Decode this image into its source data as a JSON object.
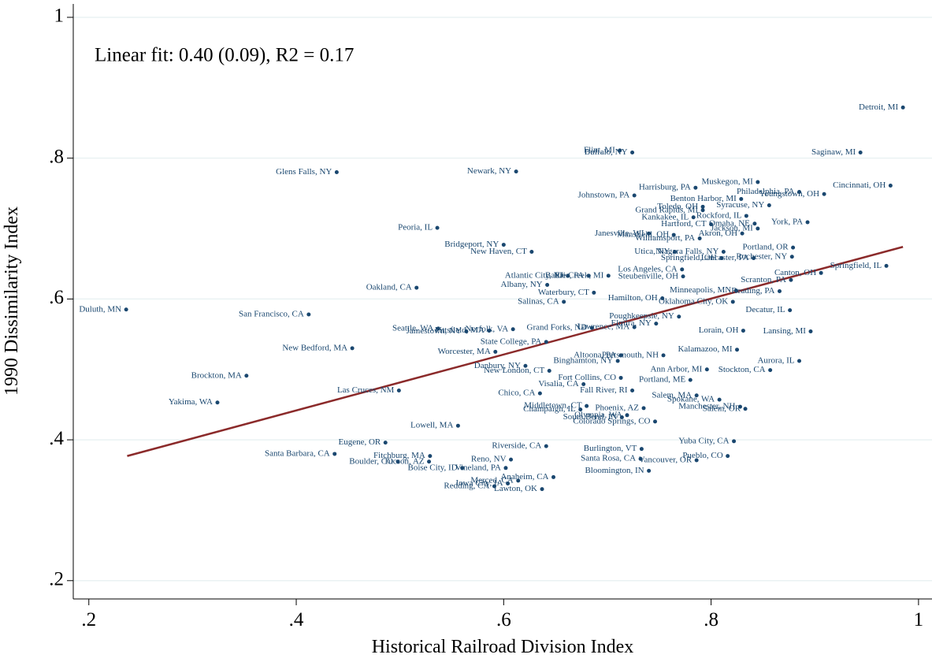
{
  "chart_data": {
    "type": "scatter",
    "annotation": "Linear fit: 0.40 (0.09), R2 = 0.17",
    "x_label": "Historical Railroad Division Index",
    "y_label": "1990 Dissimilarity Index",
    "xlim": [
      0.185,
      1.013
    ],
    "ylim": [
      0.174,
      1.019
    ],
    "xticks": [
      {
        "value": 0.2,
        "label": ".2"
      },
      {
        "value": 0.4,
        "label": ".4"
      },
      {
        "value": 0.6,
        "label": ".6"
      },
      {
        "value": 0.8,
        "label": ".8"
      },
      1
    ],
    "yticks": [
      {
        "value": 0.2,
        "label": ".2"
      },
      {
        "value": 0.4,
        "label": ".4"
      },
      {
        "value": 0.6,
        "label": ".6"
      },
      {
        "value": 0.8,
        "label": ".8"
      },
      1
    ],
    "grid": true,
    "series": [
      {
        "color": "#1a476f",
        "point_labels": [
          "Detroit, MI",
          "Saginaw, MI",
          "Cincinnati, OH",
          "Flint, MI",
          "Buffalo, NY",
          "Glens Falls, NY",
          "Newark, NY",
          "Muskegon, MI",
          "Harrisburg, PA",
          "Johnstown, PA",
          "Philadelphia, PA",
          "Youngstown, OH",
          "Benton Harbor, MI",
          "Toledo, OH",
          "Syracuse, NY",
          "Grand Rapids, MI",
          "Kankakee, IL",
          "Rockford, IL",
          "York, PA",
          "Hartford, CT",
          "Omaha, NE",
          "Jackson, MI",
          "Akron, OH",
          "Peoria, IL",
          "Janesville, WI",
          "Mansfield, OH",
          "Williamsport, PA",
          "Bridgeport, NY",
          "New Haven, CT",
          "Portland, OR",
          "Utica, NY",
          "Niagara Falls, NY",
          "Rochester, NY",
          "Springfield, OH",
          "Lancaster, PA",
          "Springfield, IL",
          "Canton, OH",
          "Los Angeles, CA",
          "Battle Creek, MI",
          "Erie, PA",
          "Atlantic City, NJ",
          "Steubenville, OH",
          "Albany, NY",
          "Scranton, PA",
          "Oakland, CA",
          "Waterbury, CT",
          "Reading, PA",
          "Minneapolis, MN",
          "Salinas, CA",
          "Hamilton, OH",
          "Oklahoma City, OK",
          "Duluth, MN",
          "Decatur, IL",
          "San Francisco, CA",
          "Poughkeepsie, NY",
          "Elmira, NY",
          "Seattle, WA",
          "Jamestown, NY",
          "Pittsfield, MA",
          "Norfolk, VA",
          "Grand Forks, ND",
          "Lawrence, MA",
          "Lorain, OH",
          "Lansing, MI",
          "State College, PA",
          "New Bedford, MA",
          "Worcester, MA",
          "Kalamazoo, MI",
          "Altoona, PA",
          "Portsmouth, NH",
          "Binghamton, NY",
          "Aurora, IL",
          "Danbury, NY",
          "New London, CT",
          "Ann Arbor, MI",
          "Stockton, CA",
          "Brockton, MA",
          "Fort Collins, CO",
          "Portland, ME",
          "Visalia, CA",
          "Fall River, RI",
          "Las Cruces, NM",
          "Chico, CA",
          "Salem, MA",
          "Spokane, WA",
          "Yakima, WA",
          "Middletown, CT",
          "Phoenix, AZ",
          "Champaign, IL",
          "Manchester, NH",
          "Salem, OR",
          "Olympia, WA",
          "South Bend, IN",
          "Colorado Springs, CO",
          "Lowell, MA",
          "Eugene, OR",
          "Riverside, CA",
          "Yuba City, CA",
          "Burlington, VT",
          "Santa Barbara, CA",
          "Pueblo, CO",
          "Fitchburg, MA",
          "Santa Rosa, CA",
          "Reno, NV",
          "Boulder, CO",
          "Tucson, AZ",
          "Vancouver, OR",
          "Boise City, ID",
          "Vineland, PA",
          "Bloomington, IN",
          "Anaheim, CA",
          "Merced, CA",
          "Iowa City, IA",
          "Redding, CA",
          "Lawton, OK"
        ],
        "x": [
          0.985,
          0.944,
          0.973,
          0.712,
          0.724,
          0.439,
          0.612,
          0.845,
          0.785,
          0.726,
          0.885,
          0.909,
          0.829,
          0.792,
          0.856,
          0.792,
          0.783,
          0.834,
          0.893,
          0.8,
          0.842,
          0.845,
          0.83,
          0.536,
          0.74,
          0.764,
          0.789,
          0.6,
          0.627,
          0.879,
          0.765,
          0.812,
          0.878,
          0.81,
          0.841,
          0.969,
          0.906,
          0.772,
          0.701,
          0.682,
          0.662,
          0.773,
          0.642,
          0.877,
          0.516,
          0.687,
          0.866,
          0.824,
          0.658,
          0.753,
          0.821,
          0.236,
          0.876,
          0.412,
          0.769,
          0.747,
          0.537,
          0.564,
          0.586,
          0.609,
          0.685,
          0.726,
          0.831,
          0.896,
          0.641,
          0.454,
          0.592,
          0.825,
          0.713,
          0.754,
          0.71,
          0.885,
          0.621,
          0.644,
          0.796,
          0.857,
          0.352,
          0.713,
          0.78,
          0.677,
          0.724,
          0.499,
          0.635,
          0.786,
          0.808,
          0.324,
          0.68,
          0.735,
          0.674,
          0.828,
          0.833,
          0.719,
          0.714,
          0.746,
          0.556,
          0.486,
          0.641,
          0.822,
          0.733,
          0.437,
          0.816,
          0.529,
          0.732,
          0.607,
          0.498,
          0.528,
          0.786,
          0.56,
          0.602,
          0.74,
          0.648,
          0.614,
          0.604,
          0.591,
          0.637
        ],
        "values": [
          0.872,
          0.808,
          0.761,
          0.811,
          0.808,
          0.78,
          0.781,
          0.766,
          0.758,
          0.747,
          0.752,
          0.749,
          0.742,
          0.731,
          0.733,
          0.726,
          0.716,
          0.718,
          0.709,
          0.706,
          0.707,
          0.7,
          0.693,
          0.701,
          0.693,
          0.691,
          0.686,
          0.677,
          0.667,
          0.673,
          0.667,
          0.667,
          0.66,
          0.658,
          0.658,
          0.647,
          0.637,
          0.642,
          0.633,
          0.633,
          0.633,
          0.632,
          0.62,
          0.627,
          0.616,
          0.609,
          0.611,
          0.612,
          0.596,
          0.601,
          0.596,
          0.585,
          0.584,
          0.578,
          0.575,
          0.565,
          0.558,
          0.554,
          0.555,
          0.557,
          0.559,
          0.56,
          0.555,
          0.554,
          0.539,
          0.53,
          0.525,
          0.528,
          0.52,
          0.52,
          0.512,
          0.512,
          0.505,
          0.498,
          0.5,
          0.499,
          0.491,
          0.488,
          0.485,
          0.479,
          0.47,
          0.47,
          0.466,
          0.463,
          0.457,
          0.453,
          0.448,
          0.445,
          0.443,
          0.447,
          0.444,
          0.435,
          0.432,
          0.426,
          0.42,
          0.396,
          0.391,
          0.398,
          0.387,
          0.38,
          0.377,
          0.377,
          0.373,
          0.372,
          0.369,
          0.369,
          0.371,
          0.36,
          0.36,
          0.356,
          0.347,
          0.342,
          0.338,
          0.334,
          0.33
        ]
      }
    ],
    "fit": {
      "color": "#8b2a2a",
      "x": [
        0.237,
        0.985
      ],
      "values": [
        0.377,
        0.674
      ]
    }
  }
}
